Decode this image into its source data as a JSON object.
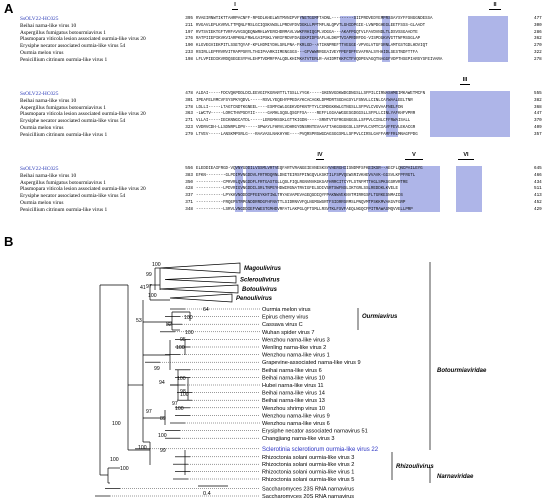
{
  "panel_a": {
    "letter": "A",
    "blocks": [
      {
        "motifs": [
          {
            "label": "I"
          },
          {
            "label": "II"
          }
        ],
        "rows": [
          {
            "name": "SsOLV22-HC025",
            "highlight": true,
            "start": "395",
            "seq": "RVAEIRNWTIKTTAHRPACNFF-RPGDLKHELWSTMVNIPVFYNETGGMFTADNL---------SIIPRDVEDYEMPRSSAYSYFFSNGGNDESSA",
            "end": "477"
          },
          {
            "name": "Beihai narna-like virus 10",
            "highlight": false,
            "start": "211",
            "seq": "RVGAVLEPLKVRVLTTPQNLFRSLGCIQSKVWSLLPRDVFDVDGKLLPPTMFLNLQPVTLGHIDPGIE-LVNPDGHEGLEETFSSS-GLAADT",
            "end": "300"
          },
          {
            "name": "Aspergillus fumigatus botourmiavirus 1",
            "highlight": false,
            "start": "197",
            "seq": "RVTSVIEKTGFTVRFAVVGSQEQNWRHLWYERCHDRMAVLVWKFRHIQGPLVDGGA---AKAFPGQTVLFAVDVNDLTLDSVSSGAADTE",
            "end": "286"
          },
          {
            "name": "Plasmopara viticola lesion associated ourmia-like virus 20",
            "highlight": false,
            "start": "276",
            "seq": "RATPIIEPIKVKVIARPKNLFRWLGAIPSKLYHRIFRDVFDAEGKPIDPSAFLHLDKPTVIAPRDRFDG-VISPDGKVVGTTNFMSSGLAP",
            "end": "362"
          },
          {
            "name": "Erysiphe necator associated ourmia-like virus 54",
            "highlight": false,
            "start": "190",
            "seq": "KLGVEGVIEKPITLSSETQYAF-KPLHDMIYDHLSRLPNA-FKRLGD--ATIKNPREFTTVEGGE-VPVGLVTGFSRNLAMTGSTGDLHDVIQT",
            "end": "270"
          },
          {
            "name": "Ourmia melon virus",
            "highlight": false,
            "start": "233",
            "seq": "RSIRLLEPFRVRVITRAPPSRYLTHGIPAARKIIMENGSGS---GFVWWRRGEAIVEYFPEFDPFEVAFRALSYHHIDLSESTNDFTTFA",
            "end": "322"
          },
          {
            "name": "Penicillium citrinum ourmia-like virus 1",
            "highlight": false,
            "start": "198",
            "seq": "LFLVPIEDIKVRDQSEGESYPALEHPTVDMRFPALQDLKHIMKATVTERLR-AHIDMTKKFCTFVQDPEVAGQTNAGGFVDPTHSEPIARSYSFEIVARA",
            "end": "278"
          }
        ]
      },
      {
        "motifs": [
          {
            "label": "III"
          }
        ],
        "rows": [
          {
            "name": "SsOLV22-HC025",
            "highlight": true,
            "start": "478",
            "seq": "ALDAI-----FDCVQKPDDLDCLEEVGIFKGRARTTLTSSLLYYGK-----GKENVGDKWDGDNGSLLSFPILCIRNASHMEIMKAWETMCFN",
            "end": "555"
          },
          {
            "name": "Beihai narna-like virus 10",
            "highlight": false,
            "start": "301",
            "seq": "IPEAFELRMCVFSYSPKYQDVL-----RSVLYEQEHYPPEDAYKCACAGKLDPMDRTSGDAGSYLFSNVLLCINLCAYWAALEELTNR",
            "end": "382"
          },
          {
            "name": "Aspergillus fumigatus botourmiavirus 1",
            "highlight": false,
            "start": "278",
            "seq": "LDLLI-----LTAGTCNDTKGNEEL----ESMFGWLGGEKVDFKNTFTYLCSMDGKKWLGTNGSLLSFPVLCVGVAAFNELFDN",
            "end": "368"
          },
          {
            "name": "Plasmopara viticola lesion associated ourmia-like virus 20",
            "highlight": false,
            "start": "363",
            "seq": "-LWCTV-----LORCTHVPSDYII-----GAMHLSQSLQSGFFSA----REFFLGGAAWGGESGDGGSLLSFPLLCINLYAFKHFVPRR",
            "end": "447"
          },
          {
            "name": "Erysiphe necator associated ourmia-like virus 54",
            "highlight": false,
            "start": "271",
            "seq": "VLLAI-----IECKNNGCATDL-----LERGMHSSKLGTTKIGDN-----SRNTVTGFRGGNGGSLLSFPVLCINLCFFRWAISALL",
            "end": "370"
          },
          {
            "name": "Ourmia melon virus",
            "highlight": false,
            "start": "323",
            "seq": "VVDRVCDH-LLSDNRPLDPV-----SPWAYLFHRVLVDHRGYDNSRNTEVAAATTAKGGNGGSLLSFPVLCVMTCIAVFFEVLEKACGR",
            "end": "409"
          },
          {
            "name": "Penicillium citrinum ourmia-like virus 1",
            "highlight": false,
            "start": "279",
            "seq": "LTVEV-----LANSKMPSRLG---RAAVASLNAKHYHE----PVQRSPRSWGDAGSGGSMLLSFPVLCIRSLGAFFAMFFRLMNAGFPDG",
            "end": "357"
          }
        ]
      },
      {
        "motifs": [
          {
            "label": "IV"
          },
          {
            "label": "V"
          },
          {
            "label": "VI"
          }
        ],
        "rows": [
          {
            "name": "SsOLV22-HC025",
            "highlight": true,
            "start": "556",
            "seq": "ELEDDIEAIFRGD-VQVNYGDDILVSSMLVRTVEQFARTVRANGEIEVNESKSYVHERGHIISNDMFSFKEIKSR--AECFLQNCPAILEYG",
            "end": "645"
          },
          {
            "name": "Beihai narna-like virus 10",
            "highlight": false,
            "start": "383",
            "seq": "EFKN--------GLPDIMVNGDDVLFRTRDQRNLDNITEIRSFPINGQVLKSKTILFSPVQEWSRIVKHEVVAVK-GGSVLKFPFRGTL",
            "end": "466"
          },
          {
            "name": "Aspergillus fumigatus botourmiavirus 1",
            "highlight": false,
            "start": "350",
            "seq": "-----------CPRVRLQVNGDDFLFRTGASTGLLQSLFIQLRGNVNVKGKSAFHRRCITCYFLSTNFMTTHGLSPKSGSRVRTRE",
            "end": "434"
          },
          {
            "name": "Plasmopara viticola lesion associated ourmia-like virus 20",
            "highlight": false,
            "start": "428",
            "seq": "-----------LPDVRIGVNGDDILSRLTNPEYHDWIRGNATRVIGFELSDIVSRTSWFNSLIKTGRLSSLREDDKLKVELE",
            "end": "511"
          },
          {
            "name": "Erysiphe necator associated ourmia-like virus 54",
            "highlight": false,
            "start": "337",
            "seq": "-----------LPYKKVNODDIPFEEYKHTIWLTRYAEVAPEVAGEQSDIQYFPAKNWVEKNVTMIRRGSFLTGRKESNMAIDS",
            "end": "413"
          },
          {
            "name": "Ourmia melon virus",
            "highlight": false,
            "start": "371",
            "seq": "-----------FRQEPSTRPGNDDRRDGFHFNVTTLSIDRNVVFQLNGMSWSRTFSIDRRSRMSLPNQVMTPSKKMVAKGVFGRP",
            "end": "452"
          },
          {
            "name": "Penicillium citrinum ourmia-like virus 1",
            "highlight": false,
            "start": "348",
            "seq": "-----------LSRVLVNGDDIEFVWESTGMHDVRFATLAKPGLQFTSMLLRSVTKLFSVFAEQLNGQCFPITRAWASMQVVELLPRP",
            "end": "429"
          }
        ]
      }
    ]
  },
  "panel_b": {
    "letter": "B",
    "scale_label": "0.4",
    "families": [
      {
        "name": "Botourmiaviridae"
      },
      {
        "name": "Narnaviridae"
      }
    ],
    "clades": [
      {
        "name": "Magoulivirus"
      },
      {
        "name": "Scleroulivirus"
      },
      {
        "name": "Botoulivirus"
      },
      {
        "name": "Penoulivirus"
      },
      {
        "name": "Ourmiavirus"
      },
      {
        "name": "Rhizoulivirus"
      }
    ],
    "leaves": [
      {
        "name": "Ourmia melon virus"
      },
      {
        "name": "Epirus cherry virus"
      },
      {
        "name": "Cassava virus C"
      },
      {
        "name": "Wuhan spider virus 7"
      },
      {
        "name": "Wenzhou narna-like virus 3"
      },
      {
        "name": "Wenling narna-like virus 2"
      },
      {
        "name": "Wenzhou narna-like virus 1"
      },
      {
        "name": "Grapevine-associated narna-like virus 9"
      },
      {
        "name": "Beihai narna-like virus 6"
      },
      {
        "name": "Beihai narna-like virus 10"
      },
      {
        "name": "Hubei narna-like virus 11"
      },
      {
        "name": "Beihai narna-like virus 14"
      },
      {
        "name": "Beihai narna-like virus 13"
      },
      {
        "name": "Wenzhou shrimp virus 10"
      },
      {
        "name": "Wenzhou narna-like virus 9"
      },
      {
        "name": "Wenzhou narna-like virus 6"
      },
      {
        "name": "Erysiphe necator associated narnavirus 51"
      },
      {
        "name": "Changjiang narna-like virus 3"
      },
      {
        "name": "Sclerotinia sclerotiorum ourmia-like virus 22"
      },
      {
        "name": "Rhizoctonia solani ourmia-like virus 3"
      },
      {
        "name": "Rhizoctonia solani ourmia-like virus 2"
      },
      {
        "name": "Rhizoctonia solani ourmia-like virus 1"
      },
      {
        "name": "Rhizoctonia solani ourmia-like virus 5"
      },
      {
        "name": "Saccharomyces 23S RNA narnavirus"
      },
      {
        "name": "Saccharomyces 20S RNA narnavirus"
      }
    ],
    "bootstrap": [
      {
        "value": "100"
      },
      {
        "value": "99"
      },
      {
        "value": "41"
      },
      {
        "value": "97"
      },
      {
        "value": "100"
      },
      {
        "value": "64"
      },
      {
        "value": "100"
      },
      {
        "value": "82"
      },
      {
        "value": "100"
      },
      {
        "value": "95"
      },
      {
        "value": "100"
      },
      {
        "value": "53"
      },
      {
        "value": "99"
      },
      {
        "value": "94"
      },
      {
        "value": "100"
      },
      {
        "value": "98"
      },
      {
        "value": "100"
      },
      {
        "value": "97"
      },
      {
        "value": "100"
      },
      {
        "value": "89"
      },
      {
        "value": "100"
      },
      {
        "value": "97"
      },
      {
        "value": "99"
      },
      {
        "value": "100"
      },
      {
        "value": "100"
      },
      {
        "value": "100"
      },
      {
        "value": "100"
      }
    ]
  }
}
